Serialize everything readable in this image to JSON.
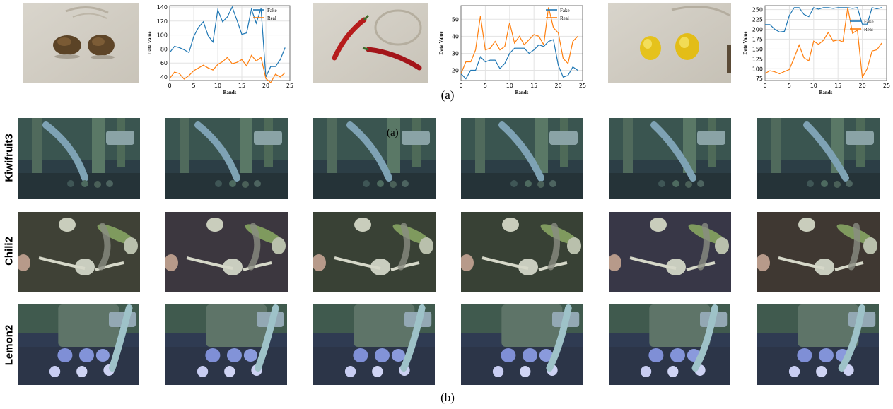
{
  "captions": {
    "a": "(a)",
    "b": "(b)",
    "stray": "(a)"
  },
  "row_labels": [
    "Kiwifruit3",
    "Chili2",
    "Lemon2"
  ],
  "chart_data": [
    {
      "type": "line",
      "title": "",
      "xlabel": "Bands",
      "ylabel": "Data Value",
      "x": [
        0,
        1,
        2,
        3,
        4,
        5,
        6,
        7,
        8,
        9,
        10,
        11,
        12,
        13,
        14,
        15,
        16,
        17,
        18,
        19,
        20,
        21,
        22,
        23,
        24
      ],
      "xlim": [
        0,
        25
      ],
      "xticks": [
        0,
        5,
        10,
        15,
        20,
        25
      ],
      "ylim": [
        35,
        142
      ],
      "yticks": [
        40,
        60,
        80,
        100,
        120,
        140
      ],
      "grid": true,
      "legend": "top-right",
      "series": [
        {
          "name": "Fake",
          "color": "#1f77b4",
          "values": [
            75,
            84,
            82,
            79,
            75,
            98,
            111,
            119,
            99,
            90,
            136,
            119,
            126,
            140,
            121,
            101,
            103,
            137,
            117,
            138,
            40,
            55,
            55,
            65,
            82
          ]
        },
        {
          "name": "Real",
          "color": "#ff7f0e",
          "values": [
            38,
            47,
            45,
            37,
            42,
            49,
            53,
            57,
            53,
            50,
            58,
            62,
            68,
            59,
            61,
            65,
            56,
            71,
            63,
            68,
            38,
            32,
            44,
            40,
            46
          ]
        }
      ]
    },
    {
      "type": "line",
      "title": "",
      "xlabel": "Bands",
      "ylabel": "Data Value",
      "x": [
        0,
        1,
        2,
        3,
        4,
        5,
        6,
        7,
        8,
        9,
        10,
        11,
        12,
        13,
        14,
        15,
        16,
        17,
        18,
        19,
        20,
        21,
        22,
        23,
        24
      ],
      "xlim": [
        0,
        25
      ],
      "xticks": [
        0,
        5,
        10,
        15,
        20,
        25
      ],
      "ylim": [
        14,
        58
      ],
      "yticks": [
        20,
        30,
        40,
        50
      ],
      "grid": true,
      "legend": "top-right",
      "series": [
        {
          "name": "Fake",
          "color": "#1f77b4",
          "values": [
            18,
            15,
            20,
            20,
            28,
            25,
            26,
            26,
            21,
            24,
            30,
            33,
            33,
            33,
            30,
            32,
            35,
            34,
            37,
            38,
            23,
            16,
            17,
            22,
            20
          ]
        },
        {
          "name": "Real",
          "color": "#ff7f0e",
          "values": [
            18,
            25,
            25,
            32,
            52,
            32,
            33,
            37,
            32,
            34,
            48,
            36,
            40,
            35,
            38,
            41,
            40,
            35,
            57,
            45,
            42,
            27,
            24,
            37,
            40
          ]
        }
      ]
    },
    {
      "type": "line",
      "title": "",
      "xlabel": "Bands",
      "ylabel": "Data Value",
      "x": [
        0,
        1,
        2,
        3,
        4,
        5,
        6,
        7,
        8,
        9,
        10,
        11,
        12,
        13,
        14,
        15,
        16,
        17,
        18,
        19,
        20,
        21,
        22,
        23,
        24
      ],
      "xlim": [
        0,
        25
      ],
      "xticks": [
        0,
        5,
        10,
        15,
        20,
        25
      ],
      "ylim": [
        70,
        260
      ],
      "yticks": [
        75,
        100,
        125,
        150,
        175,
        200,
        225,
        250
      ],
      "grid": true,
      "legend": "right",
      "series": [
        {
          "name": "Fake",
          "color": "#1f77b4",
          "values": [
            212,
            212,
            200,
            193,
            195,
            235,
            255,
            255,
            238,
            232,
            255,
            251,
            255,
            255,
            253,
            255,
            255,
            255,
            253,
            255,
            213,
            213,
            255,
            252,
            255
          ]
        },
        {
          "name": "Real",
          "color": "#ff7f0e",
          "values": [
            88,
            95,
            92,
            87,
            93,
            98,
            128,
            160,
            128,
            120,
            170,
            162,
            172,
            192,
            170,
            173,
            168,
            255,
            190,
            198,
            78,
            100,
            145,
            148,
            165
          ]
        }
      ]
    }
  ]
}
